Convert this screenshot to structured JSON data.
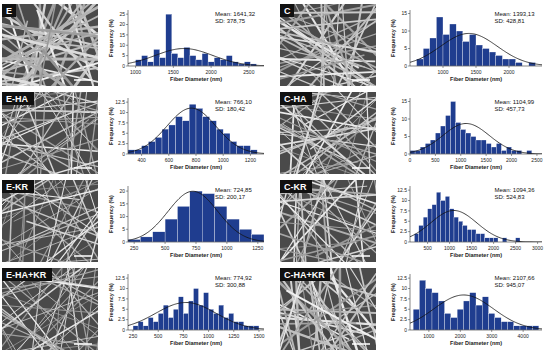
{
  "chart_data": [
    {
      "type": "histogram",
      "title": "E",
      "xlabel": "Fiber Diameter (nm)",
      "ylabel": "Frequency (%)",
      "color": "#1f3d8f",
      "bins": [
        1000,
        1080,
        1160,
        1240,
        1320,
        1400,
        1480,
        1560,
        1640,
        1720,
        1800,
        1880,
        1960,
        2040,
        2120,
        2200,
        2280,
        2360,
        2440,
        2520,
        2600
      ],
      "values": [
        3,
        5,
        2,
        8,
        4,
        25,
        6,
        4,
        9,
        5,
        3,
        6,
        2,
        4,
        3,
        5,
        2,
        1,
        2,
        1
      ],
      "xlim": [
        900,
        2700
      ],
      "xticks": [
        1000,
        1500,
        2000,
        2500
      ],
      "ylim": [
        0,
        27
      ],
      "yticks": [
        0,
        5,
        10,
        15,
        20,
        25
      ],
      "annotations": [
        "Mean: 1641,32",
        "SD: 378,75"
      ],
      "fit": {
        "mean": 1641.32,
        "sd": 378.75
      }
    },
    {
      "type": "histogram",
      "title": "E-HA",
      "xlabel": "Fiber Diameter (nm)",
      "ylabel": "Frequency (%)",
      "color": "#1f3d8f",
      "bins": [
        300,
        350,
        400,
        450,
        500,
        550,
        600,
        650,
        700,
        750,
        800,
        850,
        900,
        950,
        1000,
        1050,
        1100,
        1150,
        1200,
        1250
      ],
      "values": [
        1,
        1,
        2,
        3,
        4,
        6,
        7,
        9,
        8,
        12,
        11,
        9,
        8,
        6,
        5,
        3,
        2,
        2,
        1
      ],
      "xlim": [
        300,
        1300
      ],
      "xticks": [
        400,
        600,
        800,
        1000,
        1200
      ],
      "ylim": [
        0,
        13.5
      ],
      "yticks": [
        0,
        2.5,
        5,
        7.5,
        10,
        12.5
      ],
      "annotations": [
        "Mean: 766,10",
        "SD: 180,42"
      ],
      "fit": {
        "mean": 766.1,
        "sd": 180.42
      }
    },
    {
      "type": "histogram",
      "title": "E-KR",
      "xlabel": "Fiber Diameter (nm)",
      "ylabel": "Frequency (%)",
      "color": "#1f3d8f",
      "bins": [
        200,
        300,
        400,
        500,
        600,
        700,
        800,
        900,
        1000,
        1100,
        1200,
        1300
      ],
      "values": [
        1,
        2,
        4,
        9,
        14,
        20,
        19,
        14,
        9,
        5,
        3
      ],
      "xlim": [
        200,
        1300
      ],
      "xticks": [
        250,
        500,
        750,
        1000,
        1250
      ],
      "ylim": [
        0,
        22
      ],
      "yticks": [
        0,
        5,
        10,
        15,
        20
      ],
      "annotations": [
        "Mean: 724,85",
        "SD: 200,17"
      ],
      "fit": {
        "mean": 724.85,
        "sd": 200.17
      }
    },
    {
      "type": "histogram",
      "title": "E-HA+KR",
      "xlabel": "Fiber Diameter (nm)",
      "ylabel": "Frequency (%)",
      "color": "#1f3d8f",
      "bins": [
        250,
        300,
        350,
        400,
        450,
        500,
        550,
        600,
        650,
        700,
        750,
        800,
        850,
        900,
        950,
        1000,
        1050,
        1100,
        1150,
        1200,
        1250,
        1300,
        1350,
        1400,
        1450,
        1500
      ],
      "values": [
        1,
        2,
        1,
        3,
        2,
        4,
        6,
        3,
        5,
        8,
        4,
        7,
        10,
        6,
        9,
        5,
        4,
        6,
        3,
        4,
        2,
        2,
        1,
        1,
        1
      ],
      "xlim": [
        200,
        1550
      ],
      "xticks": [
        250,
        500,
        750,
        1000,
        1250,
        1500
      ],
      "ylim": [
        0,
        13.5
      ],
      "yticks": [
        0,
        2.5,
        5,
        7.5,
        10,
        12.5
      ],
      "annotations": [
        "Mean: 774,92",
        "SD: 300,88"
      ],
      "fit": {
        "mean": 774.92,
        "sd": 300.88
      }
    },
    {
      "type": "histogram",
      "title": "C",
      "xlabel": "Fiber Diameter (nm)",
      "ylabel": "Frequency (%)",
      "color": "#1f3d8f",
      "bins": [
        600,
        700,
        800,
        900,
        1000,
        1100,
        1200,
        1300,
        1400,
        1500,
        1600,
        1700,
        1800,
        1900,
        2000,
        2100,
        2200,
        2300,
        2400
      ],
      "values": [
        2,
        5,
        8,
        14,
        9,
        12,
        10,
        7,
        9,
        6,
        5,
        4,
        3,
        2,
        2,
        1,
        0,
        1
      ],
      "xlim": [
        500,
        2500
      ],
      "xticks": [
        1000,
        1500,
        2000
      ],
      "ylim": [
        0,
        16
      ],
      "yticks": [
        0,
        5,
        10,
        15
      ],
      "annotations": [
        "Mean: 1393,13",
        "SD: 428,81"
      ],
      "fit": {
        "mean": 1393.13,
        "sd": 428.81
      }
    },
    {
      "type": "histogram",
      "title": "C-HA",
      "xlabel": "Fiber Diameter (nm)",
      "ylabel": "Frequency (%)",
      "color": "#1f3d8f",
      "bins": [
        0,
        100,
        200,
        300,
        400,
        500,
        600,
        700,
        800,
        900,
        1000,
        1100,
        1200,
        1300,
        1400,
        1500,
        1600,
        1700,
        1800,
        1900,
        2000,
        2100,
        2200,
        2300,
        2400,
        2500
      ],
      "values": [
        1,
        1,
        2,
        3,
        4,
        6,
        8,
        11,
        15,
        9,
        7,
        6,
        5,
        4,
        4,
        3,
        2,
        3,
        1,
        2,
        1,
        1,
        0,
        1,
        0
      ],
      "xlim": [
        0,
        2600
      ],
      "xticks": [
        0,
        500,
        1000,
        1500,
        2000,
        2500
      ],
      "ylim": [
        0,
        16
      ],
      "yticks": [
        0,
        5,
        10,
        15
      ],
      "annotations": [
        "Mean: 1104,99",
        "SD: 457,73"
      ],
      "fit": {
        "mean": 1104.99,
        "sd": 457.73
      }
    },
    {
      "type": "histogram",
      "title": "C-KR",
      "xlabel": "Fiber Diameter (nm)",
      "ylabel": "Frequency (%)",
      "color": "#1f3d8f",
      "bins": [
        200,
        300,
        400,
        500,
        600,
        700,
        800,
        900,
        1000,
        1100,
        1200,
        1300,
        1400,
        1500,
        1600,
        1700,
        1800,
        1900,
        2000,
        2100,
        2200,
        2300,
        2400,
        2500,
        2600,
        2700,
        2800,
        2900,
        3000
      ],
      "values": [
        2,
        4,
        6,
        8,
        9,
        12,
        10,
        11,
        8,
        6,
        5,
        4,
        3,
        3,
        2,
        2,
        1,
        1,
        1,
        0,
        1,
        0,
        0,
        1,
        0,
        0,
        0,
        0
      ],
      "xlim": [
        100,
        3100
      ],
      "xticks": [
        500,
        1000,
        1500,
        2000,
        2500,
        3000
      ],
      "ylim": [
        0,
        13.5
      ],
      "yticks": [
        0,
        2.5,
        5,
        7.5,
        10,
        12.5
      ],
      "annotations": [
        "Mean: 1094,36",
        "SD: 524,83"
      ],
      "fit": {
        "mean": 1094.36,
        "sd": 524.83
      }
    },
    {
      "type": "histogram",
      "title": "C-HA+KR",
      "xlabel": "Fiber Diameter (nm)",
      "ylabel": "Frequency (%)",
      "color": "#1f3d8f",
      "bins": [
        500,
        700,
        900,
        1100,
        1300,
        1500,
        1700,
        1900,
        2100,
        2300,
        2500,
        2700,
        2900,
        3100,
        3300,
        3500,
        3700,
        3900,
        4100,
        4300,
        4500
      ],
      "values": [
        5,
        12,
        10,
        9,
        7,
        4,
        3,
        5,
        7,
        9,
        6,
        8,
        4,
        3,
        2,
        2,
        1,
        1,
        1,
        1
      ],
      "xlim": [
        400,
        4600
      ],
      "xticks": [
        1000,
        2000,
        3000,
        4000
      ],
      "ylim": [
        0,
        13.5
      ],
      "yticks": [
        0,
        2.5,
        5,
        7.5,
        10,
        12.5
      ],
      "annotations": [
        "Mean: 2107,66",
        "SD: 945,07"
      ],
      "fit": {
        "mean": 2107.66,
        "sd": 945.07
      }
    }
  ]
}
